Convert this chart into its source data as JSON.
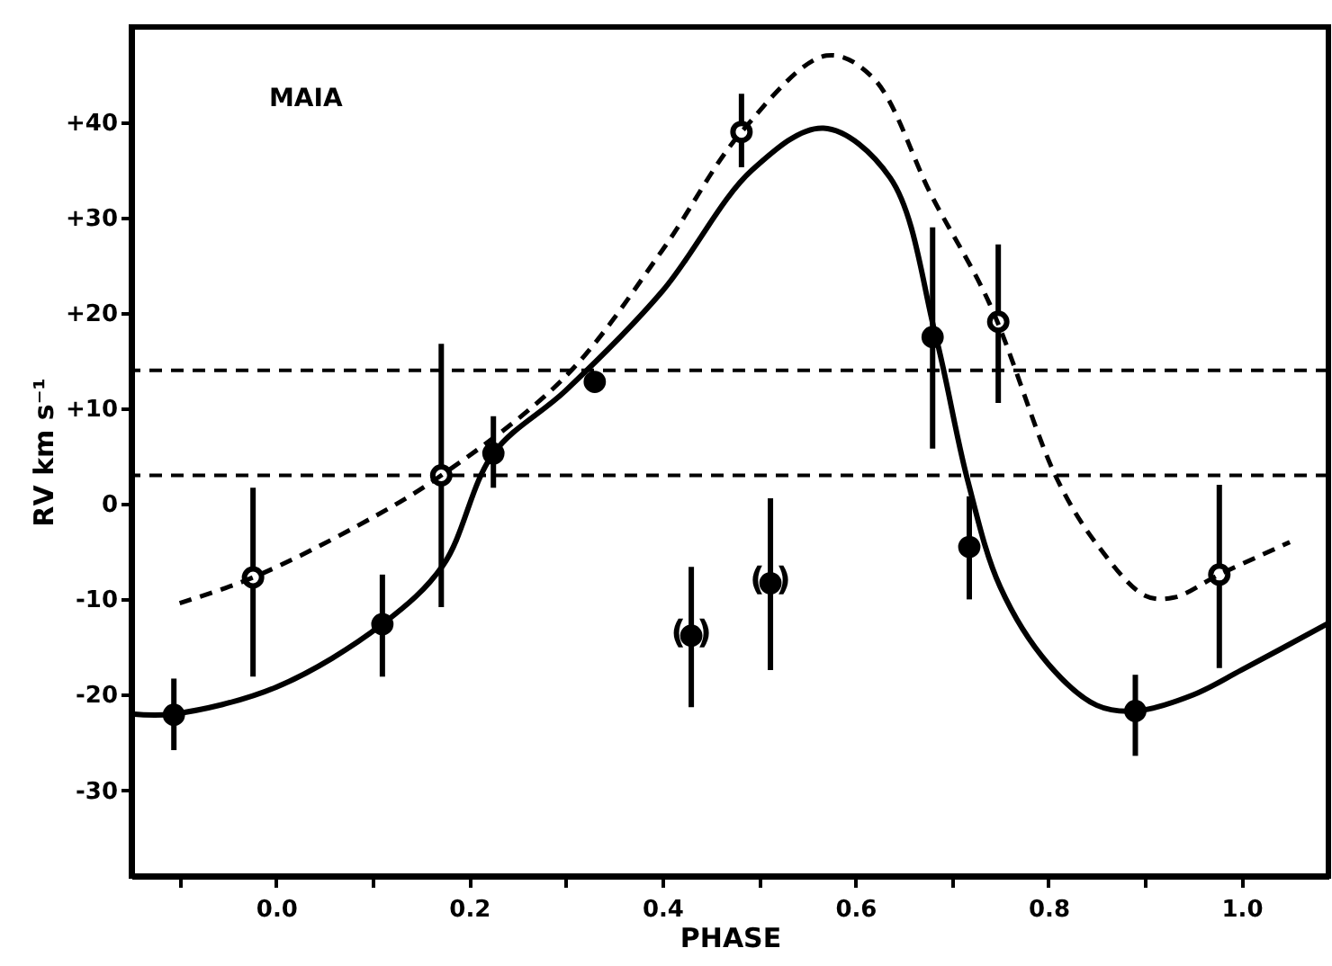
{
  "chart_data": {
    "type": "scatter",
    "xlabel": "PHASE",
    "ylabel": "RV km s⁻¹",
    "annotations": [
      "MAIA",
      {
        "text": "(   )",
        "x": 0.43,
        "y": -13.8
      },
      {
        "text": "(   )",
        "x": 0.512,
        "y": -8.3
      }
    ],
    "xlim": [
      -0.15,
      1.09
    ],
    "ylim": [
      -39,
      50
    ],
    "xticks": [
      {
        "value": -0.1,
        "label": null
      },
      "0.0",
      {
        "value": 0.1,
        "label": null
      },
      {
        "value": 0.2,
        "label": "0.2"
      },
      {
        "value": 0.3,
        "label": null
      },
      {
        "value": 0.4,
        "label": "0.4"
      },
      {
        "value": 0.5,
        "label": null
      },
      {
        "value": 0.6,
        "label": "0.6"
      },
      {
        "value": 0.7,
        "label": null
      },
      {
        "value": 0.8,
        "label": "0.8"
      },
      {
        "value": 0.9,
        "label": null
      },
      {
        "value": 1.0,
        "label": "1.0"
      }
    ],
    "yticks": [
      {
        "value": 40,
        "label": "+40"
      },
      {
        "value": 30,
        "label": "+30"
      },
      {
        "value": 20,
        "label": "+20"
      },
      {
        "value": 10,
        "label": "+10"
      },
      0,
      -10,
      -20,
      -30
    ],
    "grid": false,
    "ref_lines": [
      {
        "axis": "y",
        "value": 14,
        "line_style": "dashed"
      },
      {
        "axis": "y",
        "value": 3,
        "line_style": "dashed"
      }
    ],
    "series": [
      {
        "marker": "circle",
        "color": "#000000",
        "x": [
          -0.106,
          0.11,
          0.225,
          0.33,
          0.43,
          0.512,
          0.68,
          0.718,
          0.89
        ],
        "values": [
          -22.1,
          -12.6,
          5.3,
          12.8,
          -13.8,
          -8.3,
          17.5,
          -4.5,
          -21.7
        ],
        "errors": [
          [
            -25.8,
            -18.3
          ],
          [
            -18.1,
            -7.4
          ],
          [
            1.7,
            9.2
          ],
          null,
          [
            -21.3,
            -6.6
          ],
          [
            -17.4,
            0.6
          ],
          [
            5.8,
            29
          ],
          [
            -10,
            0.8
          ],
          [
            -26.4,
            -17.9
          ]
        ]
      },
      {
        "marker": "circle",
        "color": "#000000",
        "x": [
          -0.024,
          0.171,
          0.482,
          0.748,
          0.977
        ],
        "values": [
          -7.7,
          3.0,
          39.0,
          19.1,
          -7.4
        ],
        "errors": [
          [
            -18.1,
            1.7
          ],
          [
            -10.8,
            16.8
          ],
          [
            35.3,
            43
          ],
          [
            10.6,
            27.2
          ],
          [
            -17.2,
            2
          ]
        ]
      },
      {
        "type": "line",
        "color": "#000000",
        "line_style": "solid",
        "x": [
          -0.15,
          -0.106,
          0.0,
          0.11,
          0.173,
          0.225,
          0.3,
          0.4,
          0.493,
          0.567,
          0.636,
          0.683,
          0.716,
          0.75,
          0.8,
          0.85,
          0.89,
          0.95,
          1.0,
          1.09
        ],
        "values": [
          -22,
          -22,
          -19.2,
          -12.6,
          -6.4,
          5.3,
          11.9,
          22.3,
          35,
          39.4,
          34.2,
          17.7,
          2.6,
          -8.7,
          -16.8,
          -21.1,
          -21.7,
          -20,
          -17.4,
          -12.5
        ]
      },
      {
        "type": "line",
        "color": "#000000",
        "line_style": "dashed",
        "x": [
          -0.1,
          -0.024,
          0.084,
          0.171,
          0.3,
          0.4,
          0.482,
          0.57,
          0.618,
          0.679,
          0.739,
          0.809,
          0.85,
          0.9,
          0.93,
          0.977,
          1.05
        ],
        "values": [
          -10.4,
          -7.7,
          -2.3,
          3.0,
          13.4,
          26.6,
          39,
          47,
          44.7,
          32.3,
          21,
          2.6,
          -4.2,
          -9.6,
          -9.8,
          -7.4,
          -4
        ]
      }
    ]
  }
}
